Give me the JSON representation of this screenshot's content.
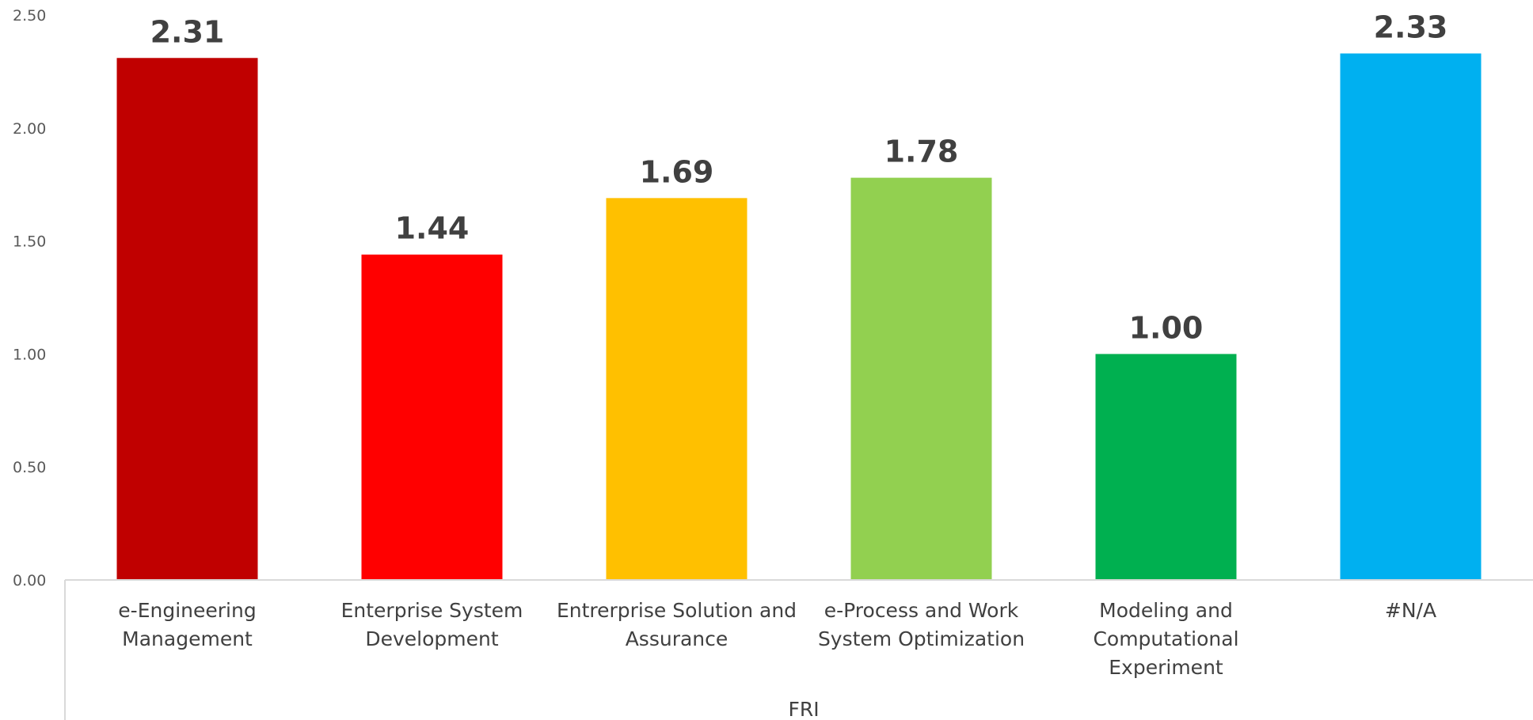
{
  "chart_data": {
    "type": "bar",
    "categories": [
      [
        "e-Engineering",
        "Management"
      ],
      [
        "Enterprise System",
        "Development"
      ],
      [
        "Entrerprise Solution and",
        "Assurance"
      ],
      [
        "e-Process and Work",
        "System Optimization"
      ],
      [
        "Modeling and",
        "Computational",
        "Experiment"
      ],
      [
        "#N/A"
      ]
    ],
    "values": [
      2.31,
      1.44,
      1.69,
      1.78,
      1.0,
      2.33
    ],
    "value_labels": [
      "2.31",
      "1.44",
      "1.69",
      "1.78",
      "1.00",
      "2.33"
    ],
    "colors": [
      "#C00000",
      "#FF0000",
      "#FFC000",
      "#92D050",
      "#00B050",
      "#00B0F0"
    ],
    "yticks": [
      "0.00",
      "0.50",
      "1.00",
      "1.50",
      "2.00",
      "2.50"
    ],
    "ylim": [
      0,
      2.5
    ],
    "group_label": "FRI",
    "grid": false,
    "legend": "none"
  }
}
